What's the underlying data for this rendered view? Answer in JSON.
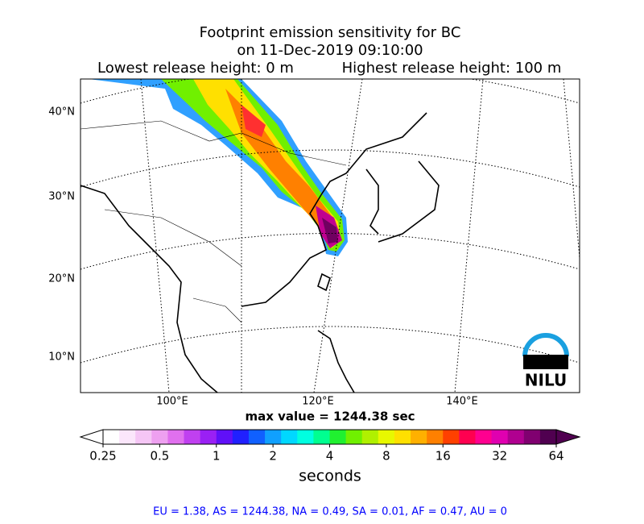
{
  "header": {
    "title": "Footprint emission sensitivity for BC",
    "date": "on 11-Dec-2019 09:10:00",
    "lowest": "Lowest release height: 0 m",
    "highest": "Highest release height: 100 m"
  },
  "map": {
    "lat_labels": [
      "40°N",
      "30°N",
      "20°N",
      "10°N"
    ],
    "lon_labels": [
      "100°E",
      "120°E",
      "140°E"
    ],
    "logo": "NILU"
  },
  "max_value": "max value = 1244.38 sec",
  "colorbar": {
    "label": "seconds",
    "lim": [
      0.25,
      64
    ],
    "ticks": [
      0.25,
      0.5,
      1,
      2,
      4,
      8,
      16,
      32,
      64
    ],
    "colors": [
      "#ffffff",
      "#fbe6fb",
      "#f5c6f5",
      "#eea0f0",
      "#e070ee",
      "#c040f0",
      "#9a20f4",
      "#6010f8",
      "#2020ff",
      "#1060ff",
      "#10a0ff",
      "#00d8ff",
      "#00ffe0",
      "#00ff90",
      "#20f030",
      "#70f000",
      "#b0f000",
      "#e8f800",
      "#ffe000",
      "#ffb000",
      "#ff8000",
      "#ff4000",
      "#ff0050",
      "#ff0090",
      "#e000b0",
      "#b00090",
      "#800070",
      "#500050"
    ]
  },
  "footer": "EU = 1.38,  AS = 1244.38,  NA = 0.49,  SA = 0.01,  AF = 0.47,  AU = 0"
}
